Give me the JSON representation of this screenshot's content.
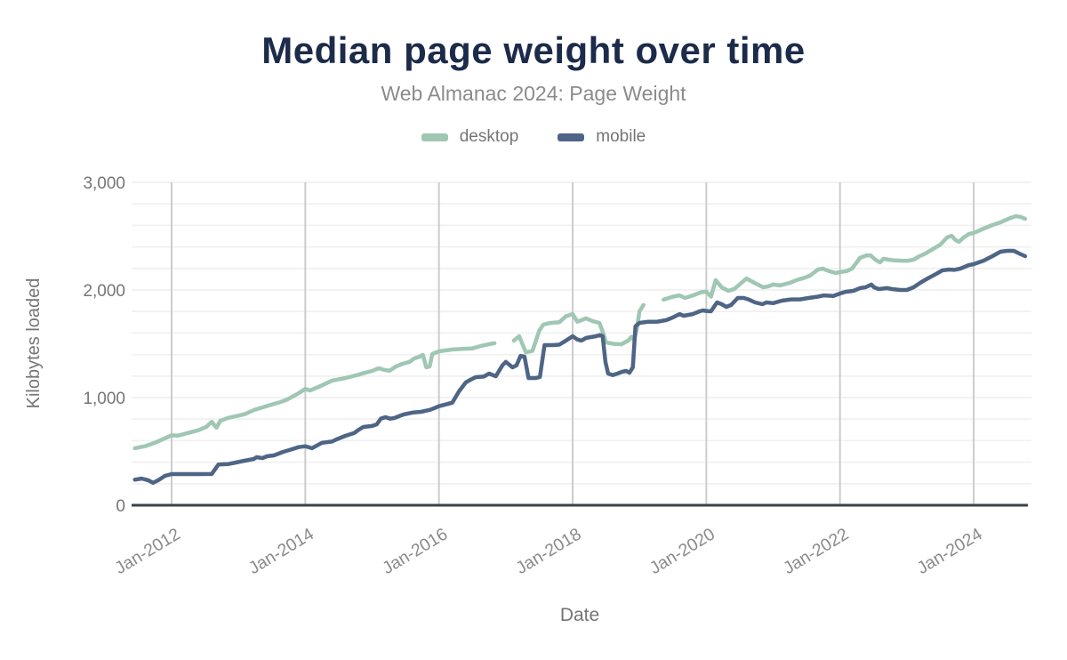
{
  "header": {
    "title": "Median page weight over time",
    "subtitle": "Web Almanac 2024: Page Weight"
  },
  "chart_data": {
    "type": "line",
    "title": "Median page weight over time",
    "subtitle": "Web Almanac 2024: Page Weight",
    "xlabel": "Date",
    "ylabel": "Kilobytes loaded",
    "x_unit": "decimal-year",
    "xlim": [
      2011.4,
      2024.85
    ],
    "ylim": [
      0,
      3000
    ],
    "grid": true,
    "minor_y_gridline_step": 200,
    "legend_position": "top",
    "axis_line_color": "#3b4149",
    "major_gridline_color": "#cccccc",
    "minor_gridline_color": "#f1f1f1",
    "tick_label_color": "#8a8a8a",
    "y_ticks": [
      {
        "value": 0,
        "label": "0"
      },
      {
        "value": 1000,
        "label": "1,000"
      },
      {
        "value": 2000,
        "label": "2,000"
      },
      {
        "value": 3000,
        "label": "3,000"
      }
    ],
    "x_ticks": [
      {
        "value": 2012,
        "label": "Jan-2012"
      },
      {
        "value": 2014,
        "label": "Jan-2014"
      },
      {
        "value": 2016,
        "label": "Jan-2016"
      },
      {
        "value": 2018,
        "label": "Jan-2018"
      },
      {
        "value": 2020,
        "label": "Jan-2020"
      },
      {
        "value": 2022,
        "label": "Jan-2022"
      },
      {
        "value": 2024,
        "label": "Jan-2024"
      }
    ],
    "series": [
      {
        "name": "desktop",
        "color": "#9fc7b3",
        "points": [
          [
            2011.45,
            530
          ],
          [
            2011.6,
            548
          ],
          [
            2011.75,
            580
          ],
          [
            2011.9,
            622
          ],
          [
            2012.0,
            650
          ],
          [
            2012.1,
            647
          ],
          [
            2012.25,
            672
          ],
          [
            2012.4,
            697
          ],
          [
            2012.52,
            728
          ],
          [
            2012.6,
            775
          ],
          [
            2012.67,
            720
          ],
          [
            2012.73,
            785
          ],
          [
            2012.85,
            812
          ],
          [
            2013.0,
            832
          ],
          [
            2013.1,
            848
          ],
          [
            2013.23,
            884
          ],
          [
            2013.36,
            909
          ],
          [
            2013.49,
            934
          ],
          [
            2013.63,
            959
          ],
          [
            2013.73,
            983
          ],
          [
            2013.87,
            1030
          ],
          [
            2014.0,
            1080
          ],
          [
            2014.07,
            1066
          ],
          [
            2014.2,
            1100
          ],
          [
            2014.4,
            1158
          ],
          [
            2014.6,
            1182
          ],
          [
            2014.77,
            1208
          ],
          [
            2014.9,
            1232
          ],
          [
            2015.0,
            1248
          ],
          [
            2015.1,
            1273
          ],
          [
            2015.19,
            1256
          ],
          [
            2015.26,
            1250
          ],
          [
            2015.36,
            1290
          ],
          [
            2015.46,
            1315
          ],
          [
            2015.56,
            1332
          ],
          [
            2015.63,
            1364
          ],
          [
            2015.71,
            1380
          ],
          [
            2015.76,
            1397
          ],
          [
            2015.81,
            1282
          ],
          [
            2015.86,
            1290
          ],
          [
            2015.9,
            1405
          ],
          [
            2016.0,
            1430
          ],
          [
            2016.2,
            1447
          ],
          [
            2016.35,
            1452
          ],
          [
            2016.5,
            1457
          ],
          [
            2016.63,
            1480
          ],
          [
            2016.75,
            1497
          ],
          [
            2016.83,
            1506
          ],
          [
            2016.95,
            null
          ],
          [
            2017.12,
            1530
          ],
          [
            2017.2,
            1570
          ],
          [
            2017.3,
            1420
          ],
          [
            2017.4,
            1435
          ],
          [
            2017.5,
            1620
          ],
          [
            2017.56,
            1678
          ],
          [
            2017.65,
            1692
          ],
          [
            2017.8,
            1700
          ],
          [
            2017.9,
            1755
          ],
          [
            2018.0,
            1777
          ],
          [
            2018.07,
            1705
          ],
          [
            2018.13,
            1719
          ],
          [
            2018.2,
            1736
          ],
          [
            2018.3,
            1710
          ],
          [
            2018.4,
            1694
          ],
          [
            2018.45,
            1612
          ],
          [
            2018.5,
            1512
          ],
          [
            2018.62,
            1499
          ],
          [
            2018.73,
            1496
          ],
          [
            2018.83,
            1529
          ],
          [
            2018.88,
            1565
          ],
          [
            2018.92,
            1537
          ],
          [
            2018.96,
            1636
          ],
          [
            2019.0,
            1802
          ],
          [
            2019.06,
            1860
          ],
          [
            2019.2,
            null
          ],
          [
            2019.36,
            1910
          ],
          [
            2019.5,
            1938
          ],
          [
            2019.6,
            1950
          ],
          [
            2019.68,
            1926
          ],
          [
            2019.8,
            1950
          ],
          [
            2019.93,
            1980
          ],
          [
            2020.0,
            1984
          ],
          [
            2020.07,
            1938
          ],
          [
            2020.14,
            2091
          ],
          [
            2020.23,
            2025
          ],
          [
            2020.33,
            1992
          ],
          [
            2020.42,
            2010
          ],
          [
            2020.5,
            2052
          ],
          [
            2020.6,
            2107
          ],
          [
            2020.72,
            2066
          ],
          [
            2020.85,
            2025
          ],
          [
            2020.93,
            2034
          ],
          [
            2021.0,
            2050
          ],
          [
            2021.1,
            2042
          ],
          [
            2021.25,
            2066
          ],
          [
            2021.35,
            2092
          ],
          [
            2021.45,
            2110
          ],
          [
            2021.55,
            2132
          ],
          [
            2021.67,
            2190
          ],
          [
            2021.74,
            2198
          ],
          [
            2021.84,
            2174
          ],
          [
            2021.93,
            2158
          ],
          [
            2022.0,
            2165
          ],
          [
            2022.1,
            2175
          ],
          [
            2022.18,
            2198
          ],
          [
            2022.3,
            2298
          ],
          [
            2022.4,
            2322
          ],
          [
            2022.46,
            2320
          ],
          [
            2022.53,
            2281
          ],
          [
            2022.6,
            2256
          ],
          [
            2022.65,
            2290
          ],
          [
            2022.73,
            2281
          ],
          [
            2022.82,
            2274
          ],
          [
            2022.93,
            2272
          ],
          [
            2023.0,
            2270
          ],
          [
            2023.1,
            2281
          ],
          [
            2023.19,
            2314
          ],
          [
            2023.28,
            2340
          ],
          [
            2023.39,
            2380
          ],
          [
            2023.5,
            2421
          ],
          [
            2023.6,
            2488
          ],
          [
            2023.67,
            2504
          ],
          [
            2023.73,
            2463
          ],
          [
            2023.78,
            2447
          ],
          [
            2023.85,
            2488
          ],
          [
            2023.93,
            2521
          ],
          [
            2024.0,
            2530
          ],
          [
            2024.15,
            2570
          ],
          [
            2024.28,
            2603
          ],
          [
            2024.4,
            2628
          ],
          [
            2024.55,
            2669
          ],
          [
            2024.63,
            2686
          ],
          [
            2024.7,
            2679
          ],
          [
            2024.77,
            2662
          ]
        ]
      },
      {
        "name": "mobile",
        "color": "#4e6586",
        "points": [
          [
            2011.45,
            237
          ],
          [
            2011.55,
            248
          ],
          [
            2011.65,
            232
          ],
          [
            2011.72,
            208
          ],
          [
            2011.8,
            232
          ],
          [
            2011.9,
            273
          ],
          [
            2012.0,
            289
          ],
          [
            2012.2,
            289
          ],
          [
            2012.4,
            289
          ],
          [
            2012.6,
            290
          ],
          [
            2012.7,
            378
          ],
          [
            2012.85,
            383
          ],
          [
            2012.96,
            397
          ],
          [
            2013.09,
            413
          ],
          [
            2013.23,
            430
          ],
          [
            2013.27,
            446
          ],
          [
            2013.36,
            438
          ],
          [
            2013.43,
            455
          ],
          [
            2013.53,
            463
          ],
          [
            2013.67,
            496
          ],
          [
            2013.76,
            512
          ],
          [
            2013.9,
            540
          ],
          [
            2014.0,
            548
          ],
          [
            2014.1,
            530
          ],
          [
            2014.25,
            580
          ],
          [
            2014.4,
            592
          ],
          [
            2014.47,
            612
          ],
          [
            2014.6,
            645
          ],
          [
            2014.73,
            670
          ],
          [
            2014.8,
            702
          ],
          [
            2014.87,
            727
          ],
          [
            2015.0,
            736
          ],
          [
            2015.07,
            752
          ],
          [
            2015.13,
            804
          ],
          [
            2015.2,
            818
          ],
          [
            2015.27,
            804
          ],
          [
            2015.33,
            810
          ],
          [
            2015.47,
            843
          ],
          [
            2015.6,
            860
          ],
          [
            2015.73,
            868
          ],
          [
            2015.87,
            887
          ],
          [
            2016.0,
            920
          ],
          [
            2016.2,
            953
          ],
          [
            2016.3,
            1058
          ],
          [
            2016.4,
            1140
          ],
          [
            2016.47,
            1165
          ],
          [
            2016.55,
            1190
          ],
          [
            2016.67,
            1195
          ],
          [
            2016.75,
            1223
          ],
          [
            2016.85,
            1198
          ],
          [
            2016.95,
            1300
          ],
          [
            2017.0,
            1331
          ],
          [
            2017.1,
            1281
          ],
          [
            2017.16,
            1300
          ],
          [
            2017.22,
            1388
          ],
          [
            2017.28,
            1380
          ],
          [
            2017.34,
            1182
          ],
          [
            2017.45,
            1182
          ],
          [
            2017.51,
            1192
          ],
          [
            2017.58,
            1488
          ],
          [
            2017.7,
            1488
          ],
          [
            2017.8,
            1492
          ],
          [
            2017.9,
            1530
          ],
          [
            2017.96,
            1554
          ],
          [
            2018.0,
            1570
          ],
          [
            2018.07,
            1540
          ],
          [
            2018.13,
            1530
          ],
          [
            2018.2,
            1554
          ],
          [
            2018.27,
            1562
          ],
          [
            2018.35,
            1570
          ],
          [
            2018.41,
            1581
          ],
          [
            2018.45,
            1570
          ],
          [
            2018.49,
            1331
          ],
          [
            2018.53,
            1223
          ],
          [
            2018.6,
            1209
          ],
          [
            2018.67,
            1223
          ],
          [
            2018.74,
            1240
          ],
          [
            2018.8,
            1248
          ],
          [
            2018.85,
            1231
          ],
          [
            2018.9,
            1281
          ],
          [
            2018.94,
            1664
          ],
          [
            2019.0,
            1694
          ],
          [
            2019.13,
            1705
          ],
          [
            2019.27,
            1706
          ],
          [
            2019.4,
            1720
          ],
          [
            2019.5,
            1745
          ],
          [
            2019.55,
            1760
          ],
          [
            2019.6,
            1776
          ],
          [
            2019.66,
            1760
          ],
          [
            2019.8,
            1776
          ],
          [
            2019.9,
            1802
          ],
          [
            2019.95,
            1810
          ],
          [
            2020.0,
            1805
          ],
          [
            2020.07,
            1802
          ],
          [
            2020.16,
            1884
          ],
          [
            2020.23,
            1868
          ],
          [
            2020.3,
            1843
          ],
          [
            2020.37,
            1860
          ],
          [
            2020.47,
            1926
          ],
          [
            2020.56,
            1926
          ],
          [
            2020.64,
            1910
          ],
          [
            2020.73,
            1884
          ],
          [
            2020.84,
            1868
          ],
          [
            2020.9,
            1884
          ],
          [
            2021.0,
            1878
          ],
          [
            2021.13,
            1901
          ],
          [
            2021.27,
            1912
          ],
          [
            2021.4,
            1912
          ],
          [
            2021.53,
            1926
          ],
          [
            2021.67,
            1938
          ],
          [
            2021.76,
            1950
          ],
          [
            2021.9,
            1945
          ],
          [
            2022.0,
            1967
          ],
          [
            2022.08,
            1983
          ],
          [
            2022.2,
            1992
          ],
          [
            2022.3,
            2017
          ],
          [
            2022.38,
            2025
          ],
          [
            2022.47,
            2050
          ],
          [
            2022.51,
            2025
          ],
          [
            2022.58,
            2008
          ],
          [
            2022.7,
            2017
          ],
          [
            2022.78,
            2008
          ],
          [
            2022.9,
            2000
          ],
          [
            2023.0,
            2000
          ],
          [
            2023.1,
            2025
          ],
          [
            2023.2,
            2066
          ],
          [
            2023.31,
            2107
          ],
          [
            2023.43,
            2146
          ],
          [
            2023.53,
            2182
          ],
          [
            2023.63,
            2190
          ],
          [
            2023.71,
            2187
          ],
          [
            2023.8,
            2198
          ],
          [
            2023.93,
            2231
          ],
          [
            2024.0,
            2240
          ],
          [
            2024.15,
            2273
          ],
          [
            2024.28,
            2314
          ],
          [
            2024.4,
            2355
          ],
          [
            2024.5,
            2364
          ],
          [
            2024.6,
            2364
          ],
          [
            2024.68,
            2339
          ],
          [
            2024.77,
            2314
          ]
        ]
      }
    ]
  }
}
